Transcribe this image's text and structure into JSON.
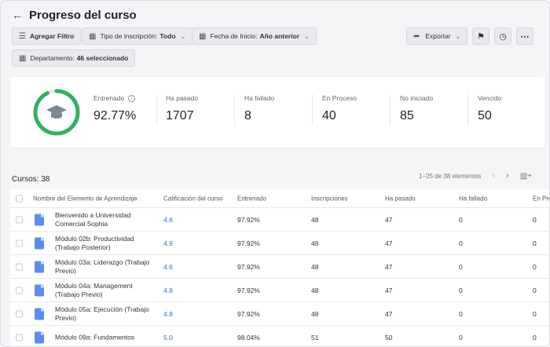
{
  "header": {
    "title": "Progreso del curso"
  },
  "filters": {
    "add_filter": "Agregar Filtro",
    "enrollment_label": "Tipo de inscripción:",
    "enrollment_value": "Todo",
    "start_label": "Fecha de Inicio:",
    "start_value": "Año anterior",
    "department_label": "Departamento:",
    "department_value": "46 seleccionado"
  },
  "actions": {
    "export": "Exportar"
  },
  "stats": {
    "trained_label": "Entrenado",
    "trained_value": "92.77%",
    "trained_fraction": 0.9277,
    "passed_label": "Ha pasado",
    "passed_value": "1707",
    "failed_label": "Ha fallado",
    "failed_value": "8",
    "inprogress_label": "En Proceso",
    "inprogress_value": "40",
    "notstarted_label": "No iniciado",
    "notstarted_value": "85",
    "expired_label": "Vencido",
    "expired_value": "50"
  },
  "courses": {
    "count": "Cursos: 38",
    "range": "1–25 de 38 elementos"
  },
  "table": {
    "columns": [
      "Nombre del Elemento de Aprendizaje",
      "Calificación del curso",
      "Entrenado",
      "Inscripciones",
      "Ha pasado",
      "Ha fallado",
      "En Pro"
    ],
    "rows": [
      {
        "name": "Bienvenido a Universidad Comercial Sophia",
        "rating": "4.6",
        "trained": "97.92%",
        "enrollments": "48",
        "passed": "47",
        "failed": "0",
        "inprogress": "0"
      },
      {
        "name": "Módulo 02b: Productividad (Trabajo Posterior)",
        "rating": "4.9",
        "trained": "97.92%",
        "enrollments": "48",
        "passed": "47",
        "failed": "0",
        "inprogress": "0"
      },
      {
        "name": "Módulo 03a: Liderazgo (Trabajo Previo)",
        "rating": "4.6",
        "trained": "97.92%",
        "enrollments": "48",
        "passed": "47",
        "failed": "0",
        "inprogress": "0"
      },
      {
        "name": "Módulo 04a: Management (Trabajo Previo)",
        "rating": "4.8",
        "trained": "97.92%",
        "enrollments": "48",
        "passed": "47",
        "failed": "0",
        "inprogress": "0"
      },
      {
        "name": "Módulo 05a: Ejecución (Trabajo Previo)",
        "rating": "4.8",
        "trained": "97.92%",
        "enrollments": "48",
        "passed": "47",
        "failed": "0",
        "inprogress": "0"
      },
      {
        "name": "Módulo 09a: Fundamentos",
        "rating": "5.0",
        "trained": "98.04%",
        "enrollments": "51",
        "passed": "50",
        "failed": "0",
        "inprogress": "0"
      }
    ]
  }
}
